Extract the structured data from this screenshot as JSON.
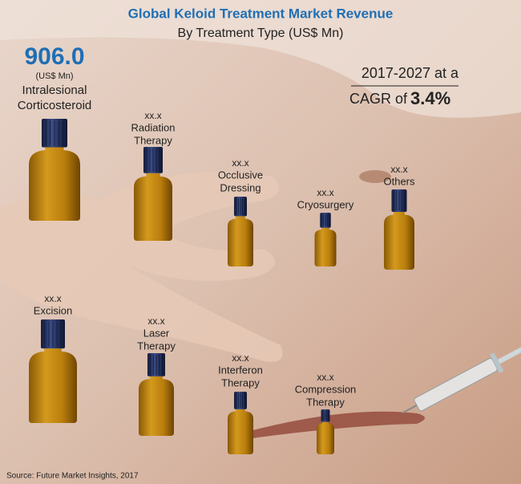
{
  "header": {
    "title": "Global Keloid Treatment Market Revenue",
    "subtitle": "By Treatment Type (US$ Mn)"
  },
  "highlight": {
    "value": "906.0",
    "unit": "(US$ Mn)",
    "label": [
      "Intralesional",
      "Corticosteroid"
    ]
  },
  "cagr": {
    "period": "2017-2027 at a",
    "prefix": "CAGR of",
    "rate": "3.4%"
  },
  "items": [
    {
      "value": "xx.x",
      "label": [
        "Radiation",
        "Therapy"
      ]
    },
    {
      "value": "xx.x",
      "label": [
        "Occlusive",
        "Dressing"
      ]
    },
    {
      "value": "xx.x",
      "label": [
        "Cryosurgery"
      ]
    },
    {
      "value": "xx.x",
      "label": [
        "Others"
      ]
    },
    {
      "value": "xx.x",
      "label": [
        "Excision"
      ]
    },
    {
      "value": "xx.x",
      "label": [
        "Laser",
        "Therapy"
      ]
    },
    {
      "value": "xx.x",
      "label": [
        "Interferon",
        "Therapy"
      ]
    },
    {
      "value": "xx.x",
      "label": [
        "Compression",
        "Therapy"
      ]
    }
  ],
  "source": "Source: Future Market Insights, 2017"
}
